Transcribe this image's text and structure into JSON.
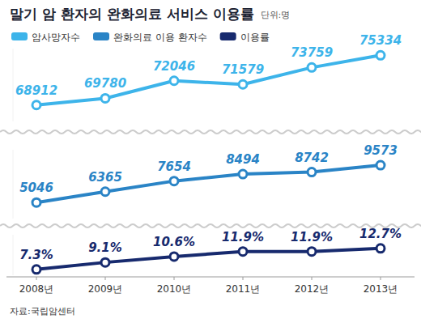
{
  "chart_data": [
    {
      "type": "line",
      "title": "말기 암 환자의 완화의료 서비스 이용률",
      "subtitle": "단위:명",
      "categories": [
        "2008년",
        "2009년",
        "2010년",
        "2011년",
        "2012년",
        "2013년"
      ],
      "series": [
        {
          "name": "암사망자수",
          "color": "#3db4ea",
          "values": [
            68912,
            69780,
            72046,
            71579,
            73759,
            75334
          ],
          "marker": "circle",
          "line_style": "solid"
        }
      ],
      "ylim": [
        66800,
        76200
      ],
      "data_labels": true,
      "tick_labels": false,
      "legend": "top-left"
    },
    {
      "type": "line",
      "categories": [
        "2008년",
        "2009년",
        "2010년",
        "2011년",
        "2012년",
        "2013년"
      ],
      "series": [
        {
          "name": "완화의료 이용 환자수",
          "color": "#2a84c6",
          "values": [
            5046,
            6365,
            7654,
            8494,
            8742,
            9573
          ],
          "marker": "circle",
          "line_style": "solid"
        }
      ],
      "ylim": [
        3100,
        11450
      ],
      "data_labels": true,
      "tick_labels": false,
      "legend": "top-left"
    },
    {
      "type": "line",
      "categories": [
        "2008년",
        "2009년",
        "2010년",
        "2011년",
        "2012년",
        "2013년"
      ],
      "series": [
        {
          "name": "이용률",
          "color": "#172a6e",
          "values": [
            7.3,
            9.1,
            10.6,
            11.9,
            11.9,
            12.7
          ],
          "value_labels": [
            "7.3%",
            "9.1%",
            "10.6%",
            "11.9%",
            "11.9%",
            "12.7%"
          ],
          "marker": "circle",
          "line_style": "solid"
        }
      ],
      "ylim": [
        5.8,
        16.2
      ],
      "data_labels": true,
      "tick_labels": "x",
      "legend": "top-left",
      "annotations": [
        "자료:국립암센터"
      ]
    }
  ]
}
